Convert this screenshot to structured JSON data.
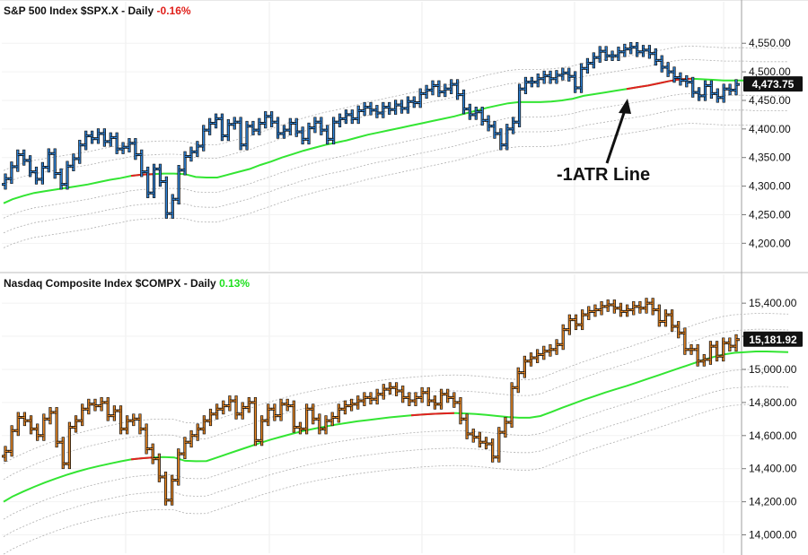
{
  "chart_data": [
    {
      "type": "bar",
      "name": "S&P 500 Index",
      "symbol": "$SPX.X",
      "period": "Daily",
      "change": "-0.16%",
      "change_color": "#e0201b",
      "bar_color": "#2f86dd",
      "last_value": "4,473.75",
      "y_ticks": [
        "4,550.00",
        "4,500.00",
        "4,450.00",
        "4,400.00",
        "4,350.00",
        "4,300.00",
        "4,250.00",
        "4,200.00"
      ],
      "y_tick_values": [
        4550,
        4500,
        4450,
        4400,
        4350,
        4300,
        4250,
        4200
      ],
      "ylim": [
        4155,
        4610
      ],
      "close": [
        4313,
        4334,
        4355,
        4345,
        4325,
        4312,
        4333,
        4357,
        4322,
        4303,
        4335,
        4348,
        4372,
        4388,
        4383,
        4392,
        4378,
        4385,
        4365,
        4368,
        4375,
        4355,
        4325,
        4288,
        4330,
        4308,
        4252,
        4277,
        4328,
        4352,
        4360,
        4370,
        4398,
        4410,
        4418,
        4388,
        4408,
        4412,
        4372,
        4405,
        4398,
        4410,
        4422,
        4412,
        4392,
        4398,
        4410,
        4395,
        4382,
        4402,
        4412,
        4398,
        4382,
        4412,
        4418,
        4425,
        4418,
        4432,
        4438,
        4433,
        4428,
        4438,
        4434,
        4442,
        4436,
        4448,
        4446,
        4462,
        4468,
        4476,
        4465,
        4470,
        4478,
        4460,
        4435,
        4425,
        4430,
        4415,
        4405,
        4392,
        4372,
        4400,
        4412,
        4470,
        4482,
        4482,
        4488,
        4493,
        4488,
        4494,
        4498,
        4492,
        4472,
        4506,
        4515,
        4525,
        4536,
        4528,
        4528,
        4535,
        4540,
        4543,
        4535,
        4538,
        4532,
        4520,
        4508,
        4500,
        4490,
        4485,
        4482,
        4464,
        4458,
        4476,
        4462,
        4455,
        4470,
        4468,
        4478
      ],
      "ma_values": [
        4270,
        4277,
        4283,
        4288,
        4291,
        4294,
        4297,
        4300,
        4303,
        4307,
        4311,
        4314,
        4318,
        4320,
        4321,
        4322,
        4322,
        4321,
        4316,
        4315,
        4315,
        4320,
        4325,
        4330,
        4337,
        4343,
        4350,
        4356,
        4362,
        4367,
        4372,
        4376,
        4380,
        4385,
        4390,
        4394,
        4398,
        4402,
        4406,
        4410,
        4414,
        4418,
        4422,
        4427,
        4432,
        4437,
        4441,
        4445,
        4447,
        4447,
        4447,
        4448,
        4450,
        4453,
        4458,
        4461,
        4464,
        4467,
        4470,
        4473,
        4476,
        4480,
        4484,
        4487,
        4488,
        4487,
        4486,
        4485,
        4485,
        4485,
        4484,
        4484,
        4484,
        4484
      ],
      "ma_x": [
        4,
        14,
        26,
        38,
        50,
        62,
        74,
        86,
        98,
        110,
        122,
        134,
        146,
        158,
        170,
        182,
        194,
        206,
        218,
        230,
        242,
        254,
        266,
        278,
        290,
        302,
        314,
        326,
        338,
        350,
        362,
        374,
        386,
        398,
        410,
        422,
        434,
        446,
        458,
        470,
        482,
        494,
        506,
        518,
        530,
        542,
        554,
        566,
        578,
        590,
        602,
        614,
        626,
        638,
        650,
        662,
        674,
        686,
        698,
        710,
        722,
        734,
        746,
        758,
        770,
        782,
        794,
        806,
        818,
        830,
        842,
        854,
        866,
        878
      ],
      "ma_red_range": [
        [
          145,
          180
        ],
        [
          690,
          780
        ]
      ],
      "annotation": "-1ATR Line"
    },
    {
      "type": "bar",
      "name": "Nasdaq Composite Index",
      "symbol": "$COMPX",
      "period": "Daily",
      "change": "0.13%",
      "change_color": "#1ee01e",
      "bar_color": "#ee8a24",
      "last_value": "15,181.92",
      "y_ticks": [
        "15,400.00",
        "15,200.00",
        "15,000.00",
        "14,800.00",
        "14,600.00",
        "14,400.00",
        "14,200.00",
        "14,000.00"
      ],
      "y_tick_values": [
        15400,
        15200,
        15000,
        14800,
        14600,
        14400,
        14200,
        14000
      ],
      "ylim": [
        13900,
        15520
      ],
      "close": [
        14505,
        14630,
        14710,
        14690,
        14640,
        14600,
        14700,
        14740,
        14560,
        14430,
        14650,
        14690,
        14760,
        14790,
        14780,
        14800,
        14720,
        14750,
        14640,
        14690,
        14700,
        14640,
        14520,
        14460,
        14350,
        14210,
        14330,
        14490,
        14560,
        14600,
        14640,
        14690,
        14730,
        14760,
        14780,
        14810,
        14730,
        14770,
        14800,
        14570,
        14690,
        14760,
        14720,
        14790,
        14780,
        14650,
        14640,
        14760,
        14700,
        14640,
        14690,
        14710,
        14760,
        14780,
        14790,
        14810,
        14830,
        14820,
        14850,
        14880,
        14890,
        14870,
        14830,
        14810,
        14830,
        14860,
        14810,
        14790,
        14850,
        14830,
        14800,
        14700,
        14610,
        14590,
        14560,
        14550,
        14470,
        14620,
        14680,
        14890,
        14980,
        15050,
        15070,
        15090,
        15110,
        15120,
        15150,
        15240,
        15300,
        15270,
        15330,
        15350,
        15360,
        15380,
        15390,
        15370,
        15350,
        15360,
        15380,
        15370,
        15400,
        15360,
        15290,
        15330,
        15260,
        15220,
        15120,
        15120,
        15050,
        15060,
        15140,
        15080,
        15160,
        15140,
        15180
      ],
      "ma_values": [
        14200,
        14232,
        14262,
        14290,
        14316,
        14340,
        14362,
        14382,
        14400,
        14416,
        14430,
        14444,
        14456,
        14463,
        14468,
        14470,
        14468,
        14448,
        14445,
        14446,
        14468,
        14490,
        14512,
        14534,
        14556,
        14576,
        14594,
        14612,
        14628,
        14642,
        14654,
        14666,
        14676,
        14686,
        14694,
        14702,
        14710,
        14716,
        14722,
        14727,
        14731,
        14734,
        14736,
        14734,
        14730,
        14725,
        14718,
        14712,
        14708,
        14708,
        14718,
        14742,
        14768,
        14792,
        14816,
        14838,
        14860,
        14880,
        14900,
        14922,
        14944,
        14966,
        14988,
        15010,
        15032,
        15054,
        15074,
        15090,
        15100,
        15104,
        15108,
        15108,
        15106,
        15104
      ],
      "ma_x": [
        4,
        14,
        26,
        38,
        50,
        62,
        74,
        86,
        98,
        110,
        122,
        134,
        146,
        158,
        170,
        182,
        194,
        206,
        218,
        230,
        242,
        254,
        266,
        278,
        290,
        302,
        314,
        326,
        338,
        350,
        362,
        374,
        386,
        398,
        410,
        422,
        434,
        446,
        458,
        470,
        482,
        494,
        506,
        518,
        530,
        542,
        554,
        566,
        578,
        590,
        602,
        614,
        626,
        638,
        650,
        662,
        674,
        686,
        698,
        710,
        722,
        734,
        746,
        758,
        770,
        782,
        794,
        806,
        818,
        830,
        842,
        854,
        866,
        878
      ],
      "ma_red_range": [
        [
          146,
          180
        ],
        [
          455,
          515
        ]
      ]
    }
  ]
}
